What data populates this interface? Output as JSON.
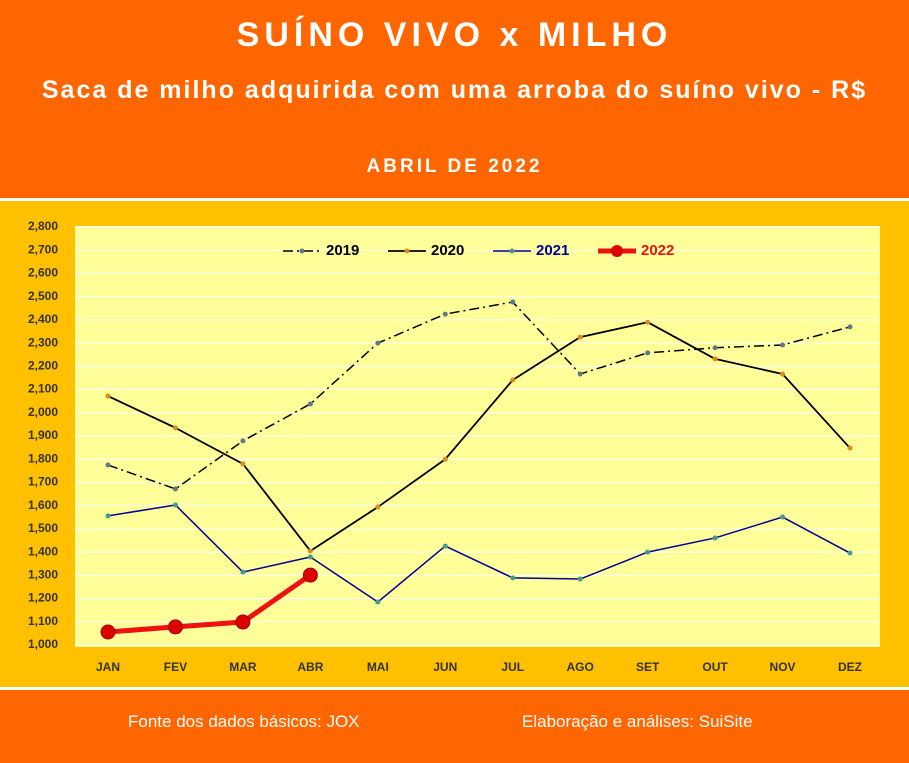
{
  "chart_data": {
    "type": "line",
    "title": "SUÍNO VIVO x MILHO",
    "subtitle": "Saca de milho adquirida com uma arroba do suíno vivo - R$",
    "period": "ABRIL DE 2022",
    "source": "Fonte dos dados básicos: JOX",
    "credit": "Elaboração e análises: SuiSite",
    "categories": [
      "JAN",
      "FEV",
      "MAR",
      "ABR",
      "MAI",
      "JUN",
      "JUL",
      "AGO",
      "SET",
      "OUT",
      "NOV",
      "DEZ"
    ],
    "series": [
      {
        "name": "2019",
        "color": "#000000",
        "marker_color": "#5a7a8a",
        "dash": "10,4,2,4",
        "width": 1.5,
        "values": [
          1.775,
          1.672,
          1.879,
          2.038,
          2.3,
          2.425,
          2.477,
          2.167,
          2.258,
          2.28,
          2.292,
          2.37
        ]
      },
      {
        "name": "2020",
        "color": "#000000",
        "marker_color": "#e08a1e",
        "width": 1.8,
        "values": [
          2.072,
          1.935,
          1.78,
          1.405,
          1.594,
          1.8,
          2.141,
          2.326,
          2.39,
          2.232,
          2.167,
          1.848
        ]
      },
      {
        "name": "2021",
        "color": "#000099",
        "marker_color": "#4a9a8a",
        "width": 1.5,
        "values": [
          1.556,
          1.603,
          1.314,
          1.379,
          1.185,
          1.426,
          1.289,
          1.284,
          1.4,
          1.461,
          1.551,
          1.396
        ]
      },
      {
        "name": "2022",
        "color": "#ee1111",
        "marker_color": "#dd0000",
        "width": 5,
        "values": [
          1.056,
          1.078,
          1.099,
          1.301,
          null,
          null,
          null,
          null,
          null,
          null,
          null,
          null
        ]
      }
    ],
    "ylim": [
      1.0,
      2.8
    ],
    "yticks": [
      {
        "value": 1.0,
        "label": "1,000"
      },
      {
        "value": 1.1,
        "label": "1,100"
      },
      {
        "value": 1.2,
        "label": "1,200"
      },
      {
        "value": 1.3,
        "label": "1,300"
      },
      {
        "value": 1.4,
        "label": "1,400"
      },
      {
        "value": 1.5,
        "label": "1,500"
      },
      {
        "value": 1.6,
        "label": "1,600"
      },
      {
        "value": 1.7,
        "label": "1,700"
      },
      {
        "value": 1.8,
        "label": "1,800"
      },
      {
        "value": 1.9,
        "label": "1,900"
      },
      {
        "value": 2.0,
        "label": "2,000"
      },
      {
        "value": 2.1,
        "label": "2,100"
      },
      {
        "value": 2.2,
        "label": "2,200"
      },
      {
        "value": 2.3,
        "label": "2,300"
      },
      {
        "value": 2.4,
        "label": "2,400"
      },
      {
        "value": 2.5,
        "label": "2,500"
      },
      {
        "value": 2.6,
        "label": "2,600"
      },
      {
        "value": 2.7,
        "label": "2,700"
      },
      {
        "value": 2.8,
        "label": "2,800"
      }
    ],
    "grid": true,
    "legend": "top"
  }
}
